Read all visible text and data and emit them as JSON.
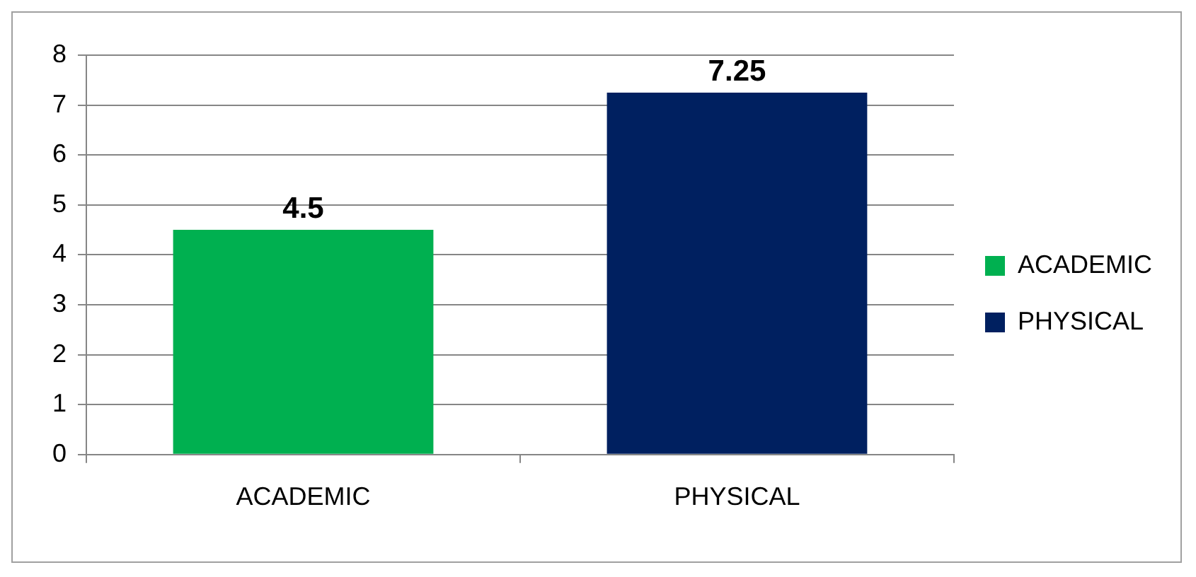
{
  "chart_data": {
    "type": "bar",
    "categories": [
      "ACADEMIC",
      "PHYSICAL"
    ],
    "series": [
      {
        "name": "ACADEMIC",
        "color": "#00b050",
        "values": [
          4.5,
          null
        ]
      },
      {
        "name": "PHYSICAL",
        "color": "#002060",
        "values": [
          null,
          7.25
        ]
      }
    ],
    "ylim": [
      0,
      8
    ],
    "yticks": [
      0,
      1,
      2,
      3,
      4,
      5,
      6,
      7,
      8
    ],
    "grid": "y",
    "legend": "right",
    "data_labels": true
  }
}
